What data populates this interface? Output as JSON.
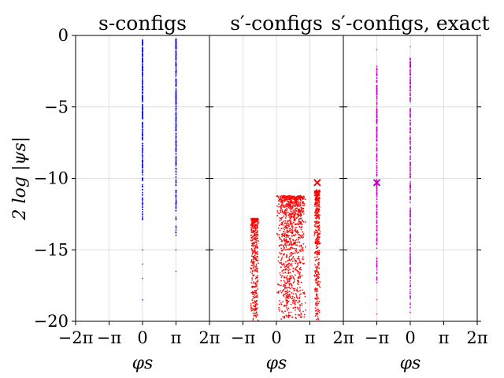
{
  "chart_data": [
    {
      "type": "scatter",
      "title": "s-configs",
      "xlabel": "φs",
      "ylabel": "2 log |ψs|",
      "xlim_in_pi": [
        -2,
        2
      ],
      "ylim": [
        -20,
        0
      ],
      "grid": true,
      "xtick_labels": [
        "−2π",
        "−π",
        "0",
        "π",
        "2π"
      ],
      "ytick_labels": [
        "0",
        "−5",
        "−10",
        "−15",
        "−20"
      ],
      "series": [
        {
          "color": "#0000ff",
          "x_in_pi": [
            0,
            1
          ],
          "values": [
            {
              "x_in_pi": 0,
              "y_dense_range": [
                -13,
                -0.3
              ],
              "y_sparse": [
                -15,
                -16,
                -17,
                -18.5
              ]
            },
            {
              "x_in_pi": 1,
              "y_dense_range": [
                -14,
                -0.2
              ],
              "y_sparse": [
                -15,
                -16.5
              ]
            }
          ]
        }
      ]
    },
    {
      "type": "scatter",
      "title": "s′-configs",
      "xlabel": "φs",
      "xlim_in_pi": [
        -2,
        2
      ],
      "ylim": [
        -20,
        0
      ],
      "grid": true,
      "xtick_labels": [
        "−2π",
        "−π",
        "0",
        "π",
        "2π"
      ],
      "series": [
        {
          "color": "#ff0000",
          "clusters": [
            {
              "x_in_pi": -0.65,
              "x_spread_in_pi": 0.13,
              "y_top": -12.8
            },
            {
              "x_in_pi": 0.45,
              "x_spread_in_pi": 0.45,
              "y_top": -11.2
            },
            {
              "x_in_pi": 1.22,
              "x_spread_in_pi": 0.09,
              "y_top": -10.8
            }
          ]
        }
      ],
      "marker_x": {
        "x_in_pi": 1.22,
        "y": -10.3,
        "color": "#ff0000"
      }
    },
    {
      "type": "scatter",
      "title": "s′-configs, exact",
      "xlabel": "φs",
      "xlim_in_pi": [
        -2,
        2
      ],
      "ylim": [
        -20,
        0
      ],
      "grid": true,
      "xtick_labels": [
        "−2π",
        "−π",
        "0",
        "π",
        "2π"
      ],
      "series": [
        {
          "color": "#bf00bf",
          "values": [
            {
              "x_in_pi": -1,
              "y_dense_range": [
                -17.5,
                -2.0
              ],
              "y_sparse": [
                -1,
                -18.5,
                -19.5
              ]
            },
            {
              "x_in_pi": 0,
              "y_dense_range": [
                -19.5,
                -1.5
              ],
              "y_sparse": [
                -0.8
              ]
            }
          ]
        }
      ],
      "marker_x": {
        "x_in_pi": -1,
        "y": -10.3,
        "color": "#bf00bf"
      }
    }
  ]
}
